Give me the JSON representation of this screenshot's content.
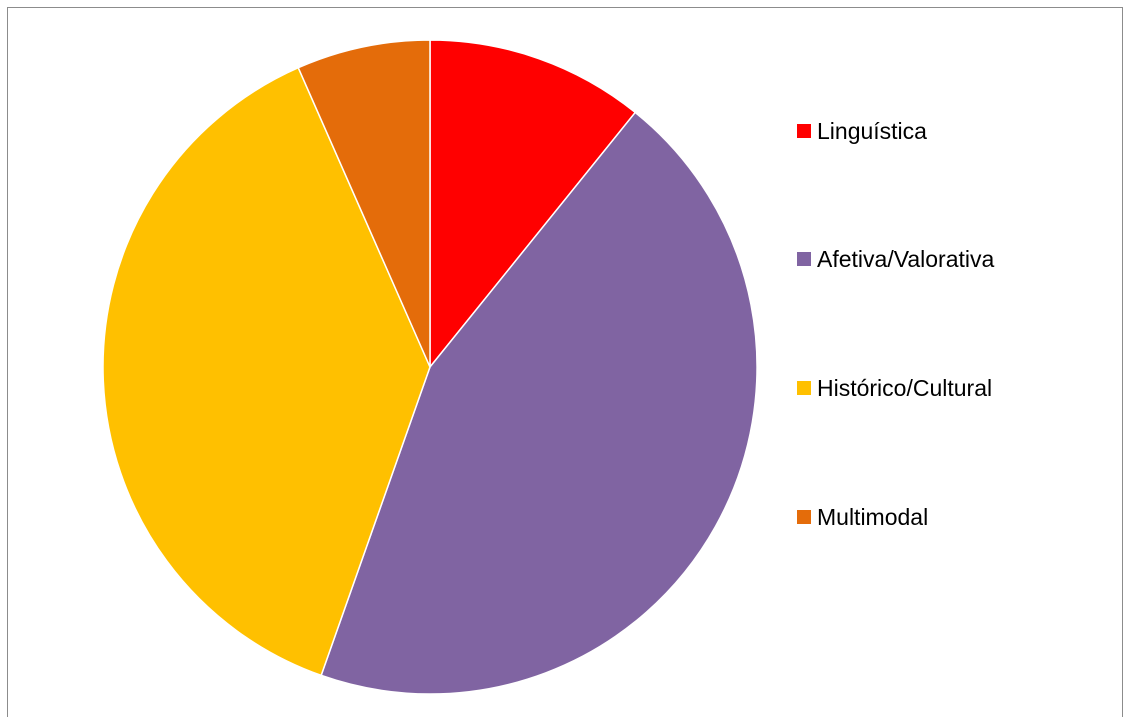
{
  "chart_data": {
    "type": "pie",
    "title": "",
    "legend_position": "right",
    "start_angle_deg": 0,
    "direction": "clockwise",
    "slices": [
      {
        "label": "Linguística",
        "value": 10.8,
        "color": "#ff0000"
      },
      {
        "label": "Afetiva/Valorativa",
        "value": 44.6,
        "color": "#8064a2"
      },
      {
        "label": "Histórico/Cultural",
        "value": 38.0,
        "color": "#ffc000"
      },
      {
        "label": "Multimodal",
        "value": 6.6,
        "color": "#e46c0a"
      }
    ]
  }
}
